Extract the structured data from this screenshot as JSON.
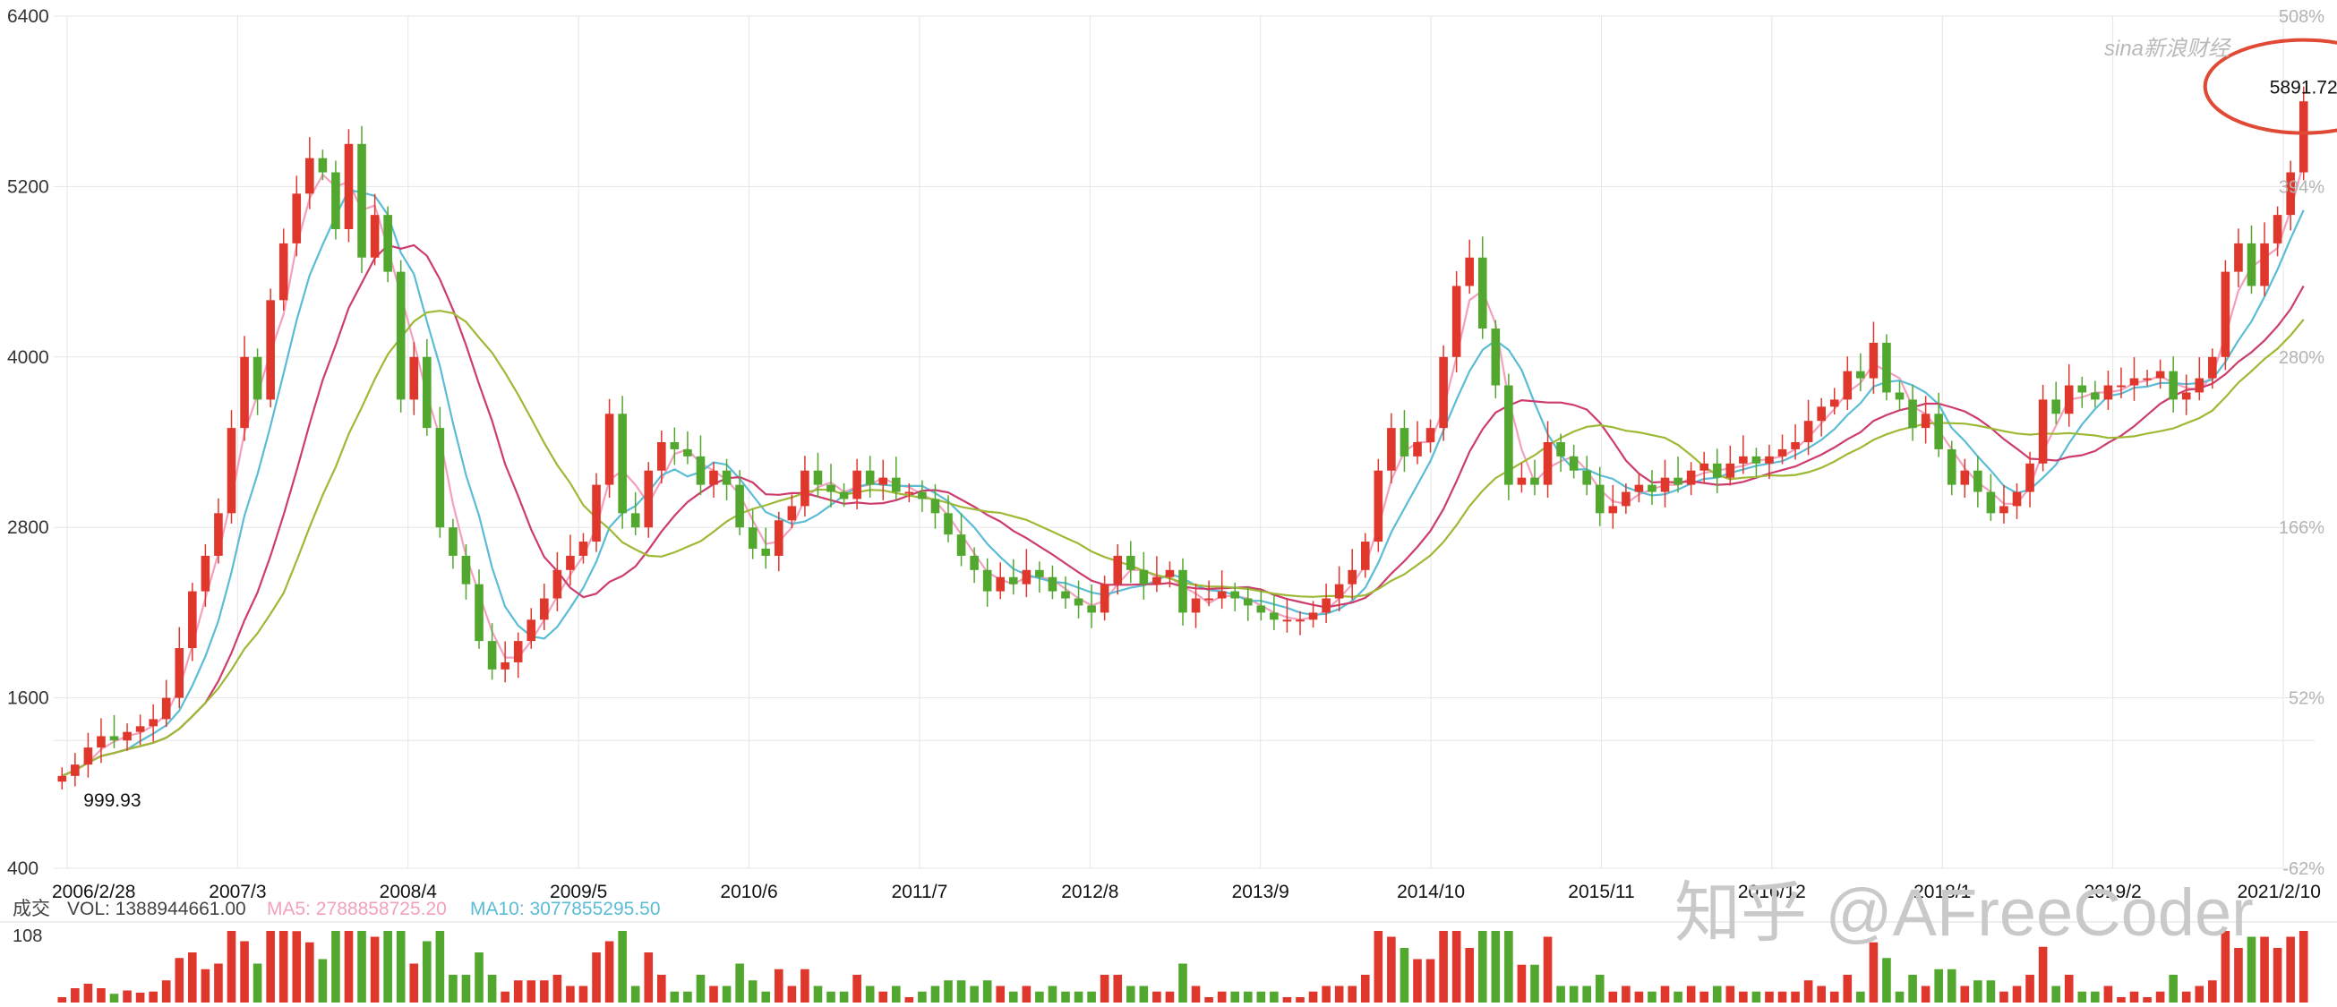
{
  "brand": {
    "logo_text": "sina新浪财经"
  },
  "watermark": {
    "text": "知乎 @AFreeCoder"
  },
  "colors": {
    "up": "#e0372d",
    "down": "#52a82e",
    "ma5": "#f2a0bd",
    "ma10": "#5bbcd6",
    "ma20": "#cc3d6e",
    "ma30": "#9db936",
    "highlight_circle": "#e04a35",
    "grid": "#e6e6e6"
  },
  "chart_data": [
    {
      "type": "candlestick",
      "y_axis_left": {
        "ticks": [
          "6400",
          "5200",
          "4000",
          "2800",
          "1600",
          "400"
        ],
        "values": [
          6400,
          5200,
          4000,
          2800,
          1600,
          400
        ],
        "range": [
          400,
          6400
        ]
      },
      "y_axis_right": {
        "ticks": [
          "508%",
          "394%",
          "280%",
          "166%",
          "52%",
          "-62%"
        ]
      },
      "x_axis": {
        "ticks": [
          "2006/2/28",
          "2007/3",
          "2008/4",
          "2009/5",
          "2010/6",
          "2011/7",
          "2012/8",
          "2013/9",
          "2014/10",
          "2015/11",
          "2016/12",
          "2018/1",
          "2019/2",
          "2021/2/10"
        ]
      },
      "annotations": [
        {
          "label": "5891.72",
          "value": 5891.72,
          "note": "max high"
        },
        {
          "label": "999.93",
          "value": 999.93,
          "note": "min low"
        }
      ],
      "series": [
        {
          "key": "ma5"
        },
        {
          "key": "ma10"
        },
        {
          "key": "ma20"
        },
        {
          "key": "ma30"
        }
      ],
      "close_path": [
        1050,
        1130,
        1250,
        1330,
        1300,
        1360,
        1400,
        1450,
        1600,
        1950,
        2350,
        2600,
        2900,
        3500,
        4000,
        3700,
        4400,
        4800,
        5150,
        5400,
        5300,
        4900,
        5500,
        4700,
        5000,
        4600,
        3700,
        4000,
        3500,
        2800,
        2600,
        2400,
        2000,
        1800,
        1850,
        2000,
        2150,
        2300,
        2500,
        2600,
        2700,
        3100,
        3600,
        2900,
        2800,
        3200,
        3400,
        3350,
        3300,
        3100,
        3200,
        3100,
        2800,
        2650,
        2600,
        2850,
        2950,
        3200,
        3100,
        3050,
        3000,
        3200,
        3100,
        3150,
        3050,
        3050,
        3000,
        2900,
        2750,
        2600,
        2500,
        2350,
        2450,
        2400,
        2500,
        2450,
        2350,
        2300,
        2250,
        2200,
        2400,
        2600,
        2500,
        2400,
        2450,
        2500,
        2200,
        2300,
        2300,
        2350,
        2300,
        2250,
        2200,
        2150,
        2150,
        2150,
        2200,
        2300,
        2400,
        2500,
        2700,
        3200,
        3500,
        3300,
        3400,
        3500,
        4000,
        4500,
        4700,
        4200,
        3800,
        3100,
        3150,
        3100,
        3400,
        3300,
        3200,
        3100,
        2900,
        2950,
        3050,
        3100,
        3050,
        3150,
        3100,
        3200,
        3250,
        3150,
        3250,
        3300,
        3250,
        3300,
        3350,
        3400,
        3550,
        3650,
        3700,
        3900,
        3850,
        4100,
        3750,
        3700,
        3500,
        3600,
        3350,
        3100,
        3200,
        3050,
        2900,
        2950,
        3050,
        3250,
        3700,
        3600,
        3800,
        3750,
        3700,
        3800,
        3800,
        3850,
        3850,
        3900,
        3700,
        3750,
        3850,
        4000,
        4600,
        4800,
        4500,
        4800,
        5000,
        5300,
        5800
      ],
      "volume_axis": {
        "ticks": [
          "108"
        ]
      }
    }
  ],
  "volume_legend": {
    "label": "成交",
    "vol": "VOL: 1388944661.00",
    "ma5": "MA5: 2788858725.20",
    "ma10": "MA10: 3077855295.50"
  }
}
